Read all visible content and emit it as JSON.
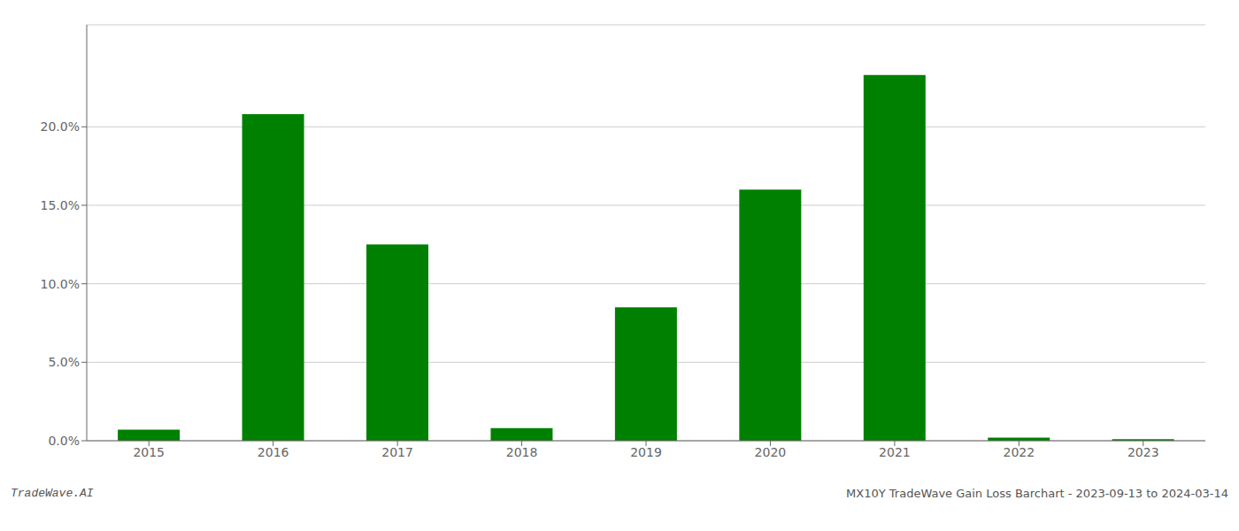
{
  "chart_data": {
    "type": "bar",
    "categories": [
      "2015",
      "2016",
      "2017",
      "2018",
      "2019",
      "2020",
      "2021",
      "2022",
      "2023"
    ],
    "values": [
      0.007,
      0.208,
      0.125,
      0.008,
      0.085,
      0.16,
      0.233,
      0.002,
      0.001
    ],
    "color": "#008000",
    "ylim": [
      0.0,
      0.265
    ],
    "yticks": [
      {
        "value": 0.0,
        "label": "0.0%"
      },
      {
        "value": 0.05,
        "label": "5.0%"
      },
      {
        "value": 0.1,
        "label": "10.0%"
      },
      {
        "value": 0.15,
        "label": "15.0%"
      },
      {
        "value": 0.2,
        "label": "20.0%"
      }
    ],
    "grid": true,
    "annotations": [
      "TradeWave.AI",
      "MX10Y TradeWave Gain Loss Barchart - 2023-09-13 to 2024-03-14"
    ]
  }
}
